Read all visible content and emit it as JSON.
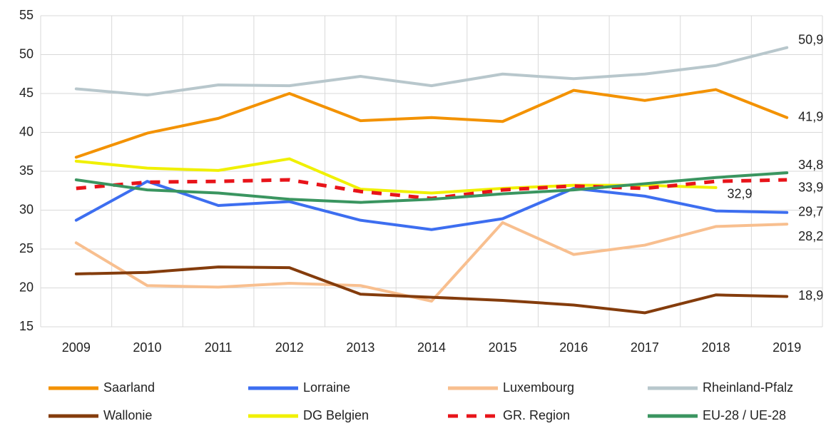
{
  "chart_data": {
    "type": "line",
    "categories": [
      "2009",
      "2010",
      "2011",
      "2012",
      "2013",
      "2014",
      "2015",
      "2016",
      "2017",
      "2018",
      "2019"
    ],
    "ylim": [
      15,
      55
    ],
    "yticks": [
      15,
      20,
      25,
      30,
      35,
      40,
      45,
      50,
      55
    ],
    "grid": true,
    "legend": "bottom",
    "series": [
      {
        "name": "Saarland",
        "color": "#f39200",
        "values": [
          36.8,
          39.9,
          41.8,
          45.0,
          41.5,
          41.9,
          41.4,
          45.4,
          44.1,
          45.5,
          41.9
        ],
        "value_labels": [
          null,
          null,
          null,
          null,
          null,
          null,
          null,
          null,
          null,
          null,
          "41,9"
        ]
      },
      {
        "name": "Lorraine",
        "color": "#3d6ef0",
        "values": [
          28.7,
          33.7,
          30.6,
          31.1,
          28.7,
          27.5,
          28.9,
          32.8,
          31.8,
          29.9,
          29.7
        ],
        "value_labels": [
          null,
          null,
          null,
          null,
          null,
          null,
          null,
          null,
          null,
          null,
          "29,7"
        ]
      },
      {
        "name": "Luxembourg",
        "color": "#f8bf8f",
        "values": [
          25.8,
          20.3,
          20.1,
          20.6,
          20.3,
          18.3,
          28.4,
          24.3,
          25.5,
          27.9,
          28.2
        ],
        "value_labels": [
          null,
          null,
          null,
          null,
          null,
          null,
          null,
          null,
          null,
          null,
          "28,2"
        ]
      },
      {
        "name": "Rheinland-Pfalz",
        "color": "#b8c7cc",
        "values": [
          45.6,
          44.8,
          46.1,
          46.0,
          47.2,
          46.0,
          47.5,
          46.9,
          47.5,
          48.6,
          50.9
        ],
        "value_labels": [
          null,
          null,
          null,
          null,
          null,
          null,
          null,
          null,
          null,
          null,
          "50,9"
        ]
      },
      {
        "name": "Wallonie",
        "color": "#843c0c",
        "values": [
          21.8,
          22.0,
          22.7,
          22.6,
          19.2,
          18.8,
          18.4,
          17.8,
          16.8,
          19.1,
          18.9
        ],
        "value_labels": [
          null,
          null,
          null,
          null,
          null,
          null,
          null,
          null,
          null,
          null,
          "18,9"
        ]
      },
      {
        "name": "DG Belgien",
        "color": "#f0f000",
        "values": [
          36.3,
          35.4,
          35.1,
          36.6,
          32.7,
          32.2,
          32.8,
          33.2,
          33.2,
          32.9,
          null
        ],
        "value_labels": [
          null,
          null,
          null,
          null,
          null,
          null,
          null,
          null,
          null,
          "32,9",
          null
        ]
      },
      {
        "name": "GR. Region",
        "color": "#e8141a",
        "dashed": true,
        "values": [
          32.8,
          33.6,
          33.7,
          33.9,
          32.4,
          31.5,
          32.6,
          33.1,
          32.8,
          33.7,
          33.9
        ],
        "value_labels": [
          null,
          null,
          null,
          null,
          null,
          null,
          null,
          null,
          null,
          null,
          "33,9"
        ]
      },
      {
        "name": "EU-28 / UE-28",
        "color": "#3a9560",
        "values": [
          33.9,
          32.6,
          32.2,
          31.4,
          31.0,
          31.4,
          32.1,
          32.6,
          33.4,
          34.2,
          34.8
        ],
        "value_labels": [
          null,
          null,
          null,
          null,
          null,
          null,
          null,
          null,
          null,
          null,
          "34,8"
        ]
      }
    ]
  }
}
